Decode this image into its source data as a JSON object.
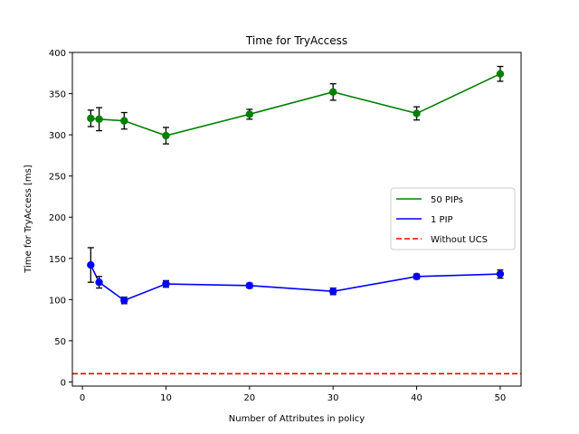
{
  "chart_data": {
    "type": "line",
    "title": "Time for TryAccess",
    "xlabel": "Number of Attributes in policy",
    "ylabel": "Time for TryAccess [ms]",
    "xlim": [
      -1.2,
      52.5
    ],
    "ylim": [
      -5,
      400
    ],
    "xticks": [
      0,
      10,
      20,
      30,
      40,
      50
    ],
    "yticks": [
      0,
      50,
      100,
      150,
      200,
      250,
      300,
      350,
      400
    ],
    "grid": false,
    "legend_position": "center-right",
    "series": [
      {
        "name": "50 PIPs",
        "color": "#008000",
        "style": "solid",
        "marker": "circle",
        "x": [
          1,
          2,
          5,
          10,
          20,
          30,
          40,
          50
        ],
        "y": [
          320,
          319,
          317,
          299,
          325,
          352,
          326,
          374
        ],
        "err": [
          10,
          14,
          10,
          10,
          6,
          10,
          8,
          9
        ]
      },
      {
        "name": "1 PIP",
        "color": "#0000ff",
        "style": "solid",
        "marker": "circle",
        "x": [
          1,
          2,
          5,
          10,
          20,
          30,
          40,
          50
        ],
        "y": [
          142,
          121,
          99,
          119,
          117,
          110,
          128,
          131
        ],
        "err": [
          21,
          7,
          4,
          4,
          3,
          4,
          3,
          5
        ]
      },
      {
        "name": "Without UCS",
        "color": "#ff0000",
        "style": "dashed",
        "marker": "none",
        "x": [
          -1.2,
          52.5
        ],
        "y": [
          10,
          10
        ],
        "err": []
      }
    ]
  }
}
